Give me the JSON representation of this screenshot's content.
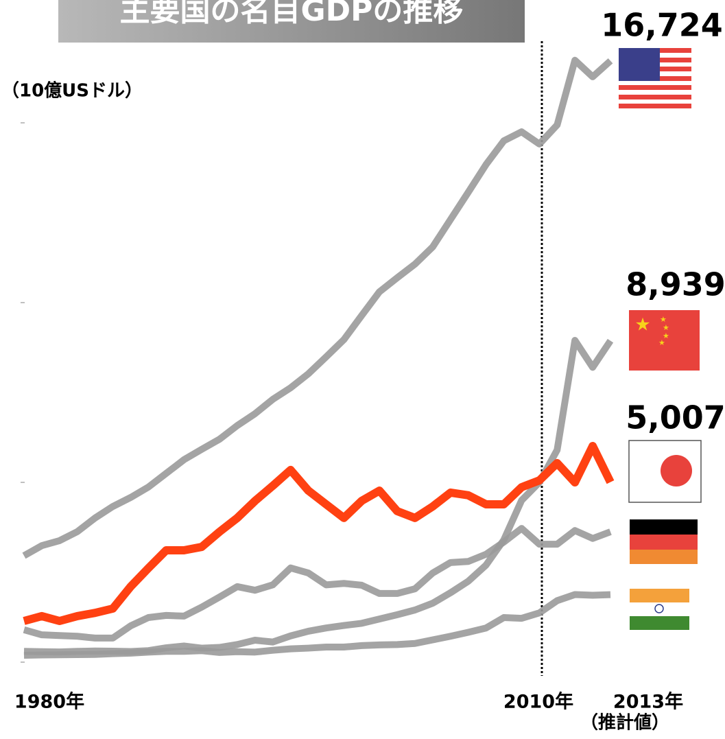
{
  "chart_data": {
    "type": "line",
    "title": "主要国の名目GDPの推移",
    "y_label": "（10億USドル）",
    "annotation": "（推計値）",
    "x": [
      1980,
      1981,
      1982,
      1983,
      1984,
      1985,
      1986,
      1987,
      1988,
      1989,
      1990,
      1991,
      1992,
      1993,
      1994,
      1995,
      1996,
      1997,
      1998,
      1999,
      2000,
      2001,
      2002,
      2003,
      2004,
      2005,
      2006,
      2007,
      2008,
      2009,
      2010,
      2011,
      2012,
      2013
    ],
    "xlim": [
      1980,
      2013
    ],
    "xticks": [
      {
        "value": 1980,
        "label": "1980年"
      },
      {
        "value": 2010,
        "label": "2010年"
      },
      {
        "value": 2013,
        "label": "2013年"
      }
    ],
    "ylim": [
      0,
      15000
    ],
    "yticks": [
      0,
      5000,
      10000,
      15000
    ],
    "series": [
      {
        "color": "#9a9a9a",
        "values": [
          2960,
          3240,
          3380,
          3630,
          4010,
          4330,
          4580,
          4870,
          5250,
          5630,
          5920,
          6200,
          6580,
          6910,
          7310,
          7630,
          8020,
          8490,
          8970,
          9640,
          10300,
          10690,
          11070,
          11550,
          12310,
          13070,
          13840,
          14500,
          14750,
          14410,
          14940,
          16740,
          16280,
          16724
        ],
        "value_labels": [
          null,
          null,
          null,
          null,
          null,
          null,
          null,
          null,
          null,
          null,
          null,
          null,
          null,
          null,
          null,
          null,
          null,
          null,
          null,
          null,
          null,
          null,
          null,
          null,
          null,
          null,
          null,
          null,
          null,
          null,
          null,
          null,
          null,
          "16,724"
        ]
      },
      {
        "color": "#9a9a9a",
        "values": [
          300,
          290,
          285,
          300,
          310,
          305,
          295,
          320,
          400,
          450,
          390,
          410,
          490,
          610,
          560,
          730,
          860,
          950,
          1020,
          1080,
          1200,
          1320,
          1450,
          1640,
          1930,
          2250,
          2700,
          3400,
          4500,
          5000,
          5900,
          8950,
          8200,
          8939
        ],
        "value_labels": [
          null,
          null,
          null,
          null,
          null,
          null,
          null,
          null,
          null,
          null,
          null,
          null,
          null,
          null,
          null,
          null,
          null,
          null,
          null,
          null,
          null,
          null,
          null,
          null,
          null,
          null,
          null,
          null,
          null,
          null,
          null,
          null,
          null,
          "8,939"
        ]
      },
      {
        "color": "#9a9a9a",
        "values": [
          900,
          760,
          740,
          720,
          670,
          670,
          1010,
          1240,
          1300,
          1280,
          1530,
          1810,
          2100,
          2000,
          2150,
          2620,
          2480,
          2150,
          2190,
          2140,
          1910,
          1910,
          2040,
          2480,
          2770,
          2800,
          3000,
          3340,
          3720,
          3280,
          3280,
          3660,
          3440,
          3626
        ]
      },
      {
        "color": "#9a9a9a",
        "values": [
          190,
          200,
          205,
          210,
          215,
          235,
          250,
          280,
          300,
          300,
          320,
          270,
          290,
          280,
          330,
          370,
          390,
          420,
          420,
          460,
          480,
          490,
          520,
          620,
          720,
          830,
          950,
          1240,
          1220,
          1370,
          1710,
          1880,
          1860,
          1877
        ]
      },
      {
        "color": "#ff4112",
        "values": [
          1145,
          1280,
          1145,
          1280,
          1370,
          1490,
          2100,
          2615,
          3110,
          3110,
          3205,
          3625,
          4010,
          4485,
          4905,
          5345,
          4770,
          4390,
          4010,
          4485,
          4770,
          4200,
          4010,
          4330,
          4715,
          4640,
          4390,
          4390,
          4865,
          5055,
          5535,
          5000,
          6010,
          5007
        ],
        "value_labels": [
          null,
          null,
          null,
          null,
          null,
          null,
          null,
          null,
          null,
          null,
          null,
          null,
          null,
          null,
          null,
          null,
          null,
          null,
          null,
          null,
          null,
          null,
          null,
          null,
          null,
          null,
          null,
          null,
          null,
          null,
          null,
          null,
          null,
          "5,007"
        ]
      }
    ]
  }
}
